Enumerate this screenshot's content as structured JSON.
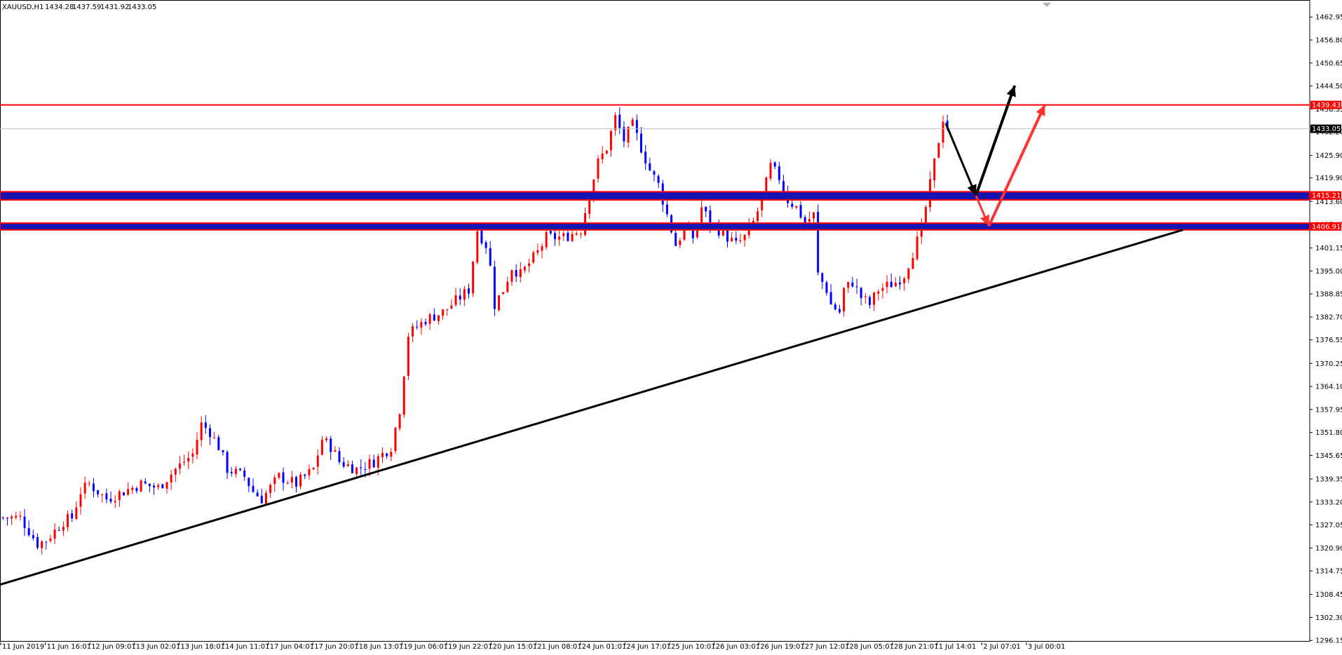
{
  "header": {
    "symbol": "XAUUSD,H1",
    "open": "1434.28",
    "high": "1437.59",
    "low": "1431.92",
    "close": "1433.05"
  },
  "chart_data": {
    "type": "candlestick",
    "symbol": "XAUUSD",
    "timeframe": "H1",
    "ylim": [
      1293.0,
      1467.5
    ],
    "y_tick_labels": [
      "1462.95",
      "1456.80",
      "1450.65",
      "1444.50",
      "1438.35",
      "1432.20",
      "1425.90",
      "1419.90",
      "1413.60",
      "1407.45",
      "1401.15",
      "1395.00",
      "1388.85",
      "1382.70",
      "1376.55",
      "1370.25",
      "1364.10",
      "1357.95",
      "1351.80",
      "1345.65",
      "1339.35",
      "1333.20",
      "1327.05",
      "1320.90",
      "1314.75",
      "1308.45",
      "1302.30",
      "1296.15"
    ],
    "x_tick_labels": [
      "11 Jun 2019",
      "11 Jun 16:01",
      "12 Jun 09:01",
      "13 Jun 02:01",
      "13 Jun 18:01",
      "14 Jun 11:01",
      "17 Jun 04:01",
      "17 Jun 20:01",
      "18 Jun 13:01",
      "19 Jun 06:01",
      "19 Jun 22:01",
      "20 Jun 15:01",
      "21 Jun 08:01",
      "24 Jun 01:01",
      "24 Jun 17:01",
      "25 Jun 10:01",
      "26 Jun 03:01",
      "26 Jun 19:01",
      "27 Jun 12:01",
      "28 Jun 05:01",
      "28 Jun 21:01",
      "1 Jul 14:01",
      "2 Jul 07:01",
      "3 Jul 00:01"
    ],
    "price_path": [
      [
        0,
        1329
      ],
      [
        4,
        1329
      ],
      [
        8,
        1322
      ],
      [
        10,
        1323
      ],
      [
        14,
        1328
      ],
      [
        16,
        1329
      ],
      [
        18,
        1336
      ],
      [
        20,
        1338
      ],
      [
        24,
        1334
      ],
      [
        28,
        1336
      ],
      [
        32,
        1338
      ],
      [
        36,
        1337
      ],
      [
        40,
        1342
      ],
      [
        44,
        1346
      ],
      [
        46,
        1354
      ],
      [
        48,
        1352
      ],
      [
        50,
        1348
      ],
      [
        52,
        1342
      ],
      [
        56,
        1340
      ],
      [
        58,
        1336
      ],
      [
        60,
        1334
      ],
      [
        64,
        1340
      ],
      [
        68,
        1338
      ],
      [
        72,
        1342
      ],
      [
        74,
        1350
      ],
      [
        76,
        1348
      ],
      [
        78,
        1344
      ],
      [
        82,
        1342
      ],
      [
        86,
        1344
      ],
      [
        90,
        1348
      ],
      [
        92,
        1358
      ],
      [
        94,
        1378
      ],
      [
        98,
        1382
      ],
      [
        102,
        1384
      ],
      [
        104,
        1386
      ],
      [
        108,
        1390
      ],
      [
        110,
        1406
      ],
      [
        112,
        1402
      ],
      [
        113,
        1396
      ],
      [
        114,
        1386
      ],
      [
        116,
        1390
      ],
      [
        118,
        1396
      ],
      [
        120,
        1394
      ],
      [
        124,
        1400
      ],
      [
        126,
        1404
      ],
      [
        130,
        1404
      ],
      [
        134,
        1406
      ],
      [
        136,
        1416
      ],
      [
        138,
        1424
      ],
      [
        140,
        1428
      ],
      [
        142,
        1436
      ],
      [
        144,
        1430
      ],
      [
        146,
        1434
      ],
      [
        148,
        1428
      ],
      [
        150,
        1422
      ],
      [
        152,
        1418
      ],
      [
        154,
        1410
      ],
      [
        156,
        1402
      ],
      [
        158,
        1406
      ],
      [
        160,
        1404
      ],
      [
        162,
        1412
      ],
      [
        164,
        1408
      ],
      [
        166,
        1406
      ],
      [
        168,
        1404
      ],
      [
        170,
        1402
      ],
      [
        172,
        1404
      ],
      [
        174,
        1408
      ],
      [
        176,
        1414
      ],
      [
        178,
        1423
      ],
      [
        180,
        1420
      ],
      [
        182,
        1414
      ],
      [
        184,
        1412
      ],
      [
        186,
        1408
      ],
      [
        188,
        1410
      ],
      [
        189,
        1394
      ],
      [
        191,
        1390
      ],
      [
        192,
        1386
      ],
      [
        194,
        1384
      ],
      [
        195,
        1390
      ],
      [
        197,
        1392
      ],
      [
        199,
        1388
      ],
      [
        201,
        1386
      ],
      [
        203,
        1390
      ],
      [
        205,
        1391
      ],
      [
        207,
        1392
      ],
      [
        209,
        1394
      ],
      [
        211,
        1400
      ],
      [
        213,
        1406
      ],
      [
        215,
        1418
      ],
      [
        216,
        1424
      ],
      [
        217,
        1430
      ],
      [
        218,
        1436
      ],
      [
        219,
        1433.05
      ]
    ],
    "last_price": 1433.05,
    "series": [
      {
        "kind": "horizontal_level",
        "color": "#ff0000",
        "value": 1439.43,
        "label": "1439.43"
      },
      {
        "kind": "support_zone",
        "color": "#ff0000",
        "fill": "#1515b5",
        "value": 1415.21,
        "label": "1415.21",
        "band": [
          1414.0,
          1416.2
        ]
      },
      {
        "kind": "support_zone",
        "color": "#ff0000",
        "fill": "#1515b5",
        "value": 1406.91,
        "label": "1406.91",
        "band": [
          1406.0,
          1407.8
        ]
      },
      {
        "kind": "trendline",
        "color": "#000000",
        "points": [
          [
            -2,
            1310.5
          ],
          [
            274,
            1406.0
          ]
        ]
      },
      {
        "kind": "arrow_path",
        "color": "#000000",
        "points": [
          [
            219,
            1434.5
          ],
          [
            226,
            1415.2
          ],
          [
            235,
            1444.6
          ]
        ]
      },
      {
        "kind": "arrow_path",
        "color": "#ff3333",
        "points": [
          [
            226,
            1415.2
          ],
          [
            229,
            1407.0
          ],
          [
            242,
            1439.5
          ]
        ]
      }
    ],
    "up_color": "#ff0000",
    "down_color": "#0000ff",
    "grid": false
  }
}
